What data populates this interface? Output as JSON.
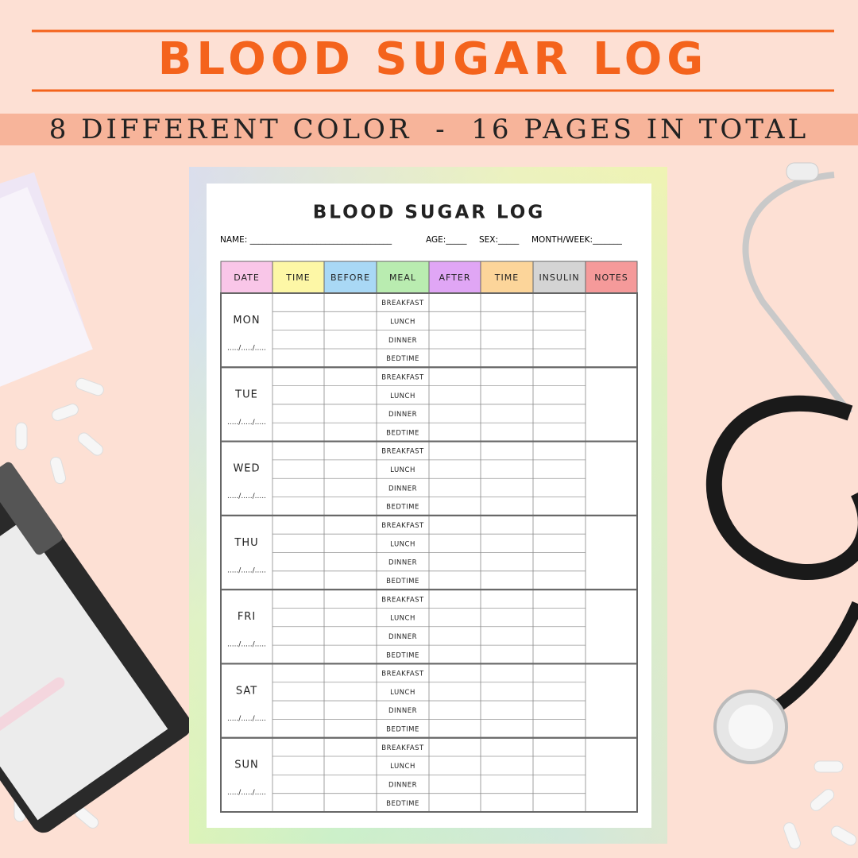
{
  "banner": {
    "title": "BLOOD SUGAR LOG",
    "subtitle": "8 DIFFERENT COLOR  -  16 PAGES IN TOTAL"
  },
  "sheet": {
    "title": "BLOOD SUGAR LOG",
    "fields": [
      "NAME: __________________________________",
      "AGE:_____",
      "SEX:_____",
      "MONTH/WEEK:_______"
    ],
    "table": {
      "headers": [
        "DATE",
        "TIME",
        "BEFORE",
        "MEAL",
        "AFTER",
        "TIME",
        "INSULIN",
        "NOTES"
      ],
      "days": [
        "MON",
        "TUE",
        "WED",
        "THU",
        "FRI",
        "SAT",
        "SUN"
      ],
      "date_blank": "...../...../.....",
      "meals": [
        "BREAKFAST",
        "LUNCH",
        "DINNER",
        "BEDTIME"
      ]
    }
  }
}
